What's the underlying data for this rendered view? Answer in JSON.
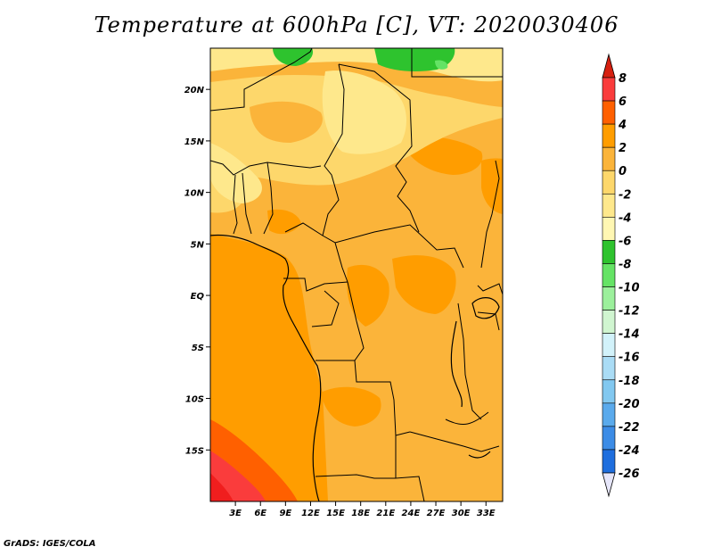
{
  "title": "Temperature at 600hPa [C], VT: 2020030406",
  "credit": "GrADS: IGES/COLA",
  "map": {
    "lon_range": [
      0,
      35
    ],
    "lat_range": [
      -20,
      24
    ],
    "lat_ticks": [
      {
        "value": 20,
        "label": "20N"
      },
      {
        "value": 15,
        "label": "15N"
      },
      {
        "value": 10,
        "label": "10N"
      },
      {
        "value": 5,
        "label": "5N"
      },
      {
        "value": 0,
        "label": "EQ"
      },
      {
        "value": -5,
        "label": "5S"
      },
      {
        "value": -10,
        "label": "10S"
      },
      {
        "value": -15,
        "label": "15S"
      }
    ],
    "lon_ticks": [
      {
        "value": 3,
        "label": "3E"
      },
      {
        "value": 6,
        "label": "6E"
      },
      {
        "value": 9,
        "label": "9E"
      },
      {
        "value": 12,
        "label": "12E"
      },
      {
        "value": 15,
        "label": "15E"
      },
      {
        "value": 18,
        "label": "18E"
      },
      {
        "value": 21,
        "label": "21E"
      },
      {
        "value": 24,
        "label": "24E"
      },
      {
        "value": 27,
        "label": "27E"
      },
      {
        "value": 30,
        "label": "30E"
      },
      {
        "value": 33,
        "label": "33E"
      }
    ]
  },
  "colorbar": {
    "levels": [
      "8",
      "6",
      "4",
      "2",
      "0",
      "-2",
      "-4",
      "-6",
      "-8",
      "-10",
      "-12",
      "-14",
      "-16",
      "-18",
      "-20",
      "-22",
      "-24",
      "-26"
    ],
    "colors": [
      "#f01e1e",
      "#fa3c3c",
      "#ff6000",
      "#ff9d00",
      "#fbb43a",
      "#fdd76b",
      "#fee88c",
      "#fff7b3",
      "#2ec32e",
      "#65e365",
      "#9cf09c",
      "#d0f5d0",
      "#d2f2fa",
      "#aadcf5",
      "#82c8f0",
      "#5aaaec",
      "#3c8ce6",
      "#1e6ede",
      "#0a50c8",
      "#052896"
    ],
    "top_arrow_color": "#d62010",
    "bottom_arrow_color": "#e6e6fa"
  },
  "chart_data": {
    "type": "heatmap",
    "title": "Temperature at 600hPa [C], VT: 2020030406",
    "xlabel": "",
    "ylabel": "",
    "x_range": [
      0,
      35
    ],
    "y_range": [
      -20,
      24
    ],
    "xticks": [
      "3E",
      "6E",
      "9E",
      "12E",
      "15E",
      "18E",
      "21E",
      "24E",
      "27E",
      "30E",
      "33E"
    ],
    "yticks": [
      "20N",
      "15N",
      "10N",
      "5N",
      "EQ",
      "5S",
      "10S",
      "15S"
    ],
    "colorbar_levels": [
      8,
      6,
      4,
      2,
      0,
      -2,
      -4,
      -6,
      -8,
      -10,
      -12,
      -14,
      -16,
      -18,
      -20,
      -22,
      -24,
      -26
    ],
    "colorbar_units": "C"
  }
}
